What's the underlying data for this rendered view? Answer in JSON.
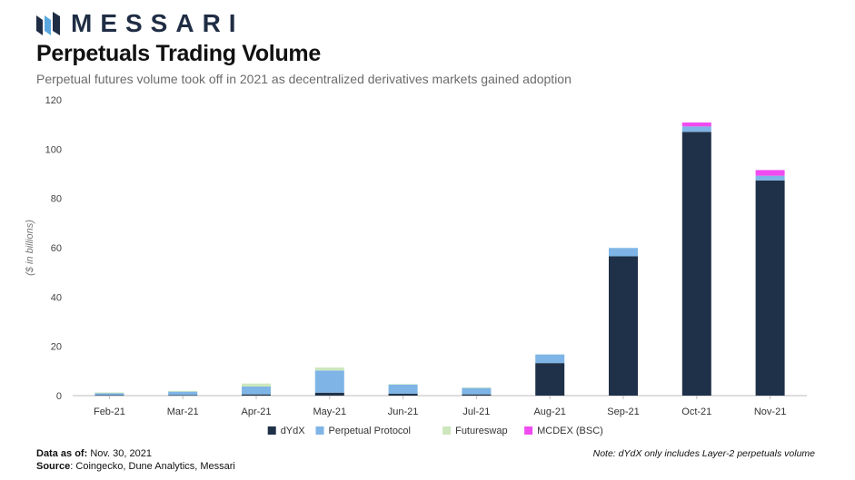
{
  "brand": {
    "name": "MESSARI",
    "color": "#1f2d44"
  },
  "header": {
    "title": "Perpetuals Trading Volume",
    "subtitle": "Perpetual futures volume took off in 2021 as decentralized derivatives markets gained adoption"
  },
  "footer": {
    "data_as_of_label": "Data as of:",
    "data_as_of_value": "Nov. 30, 2021",
    "source_label": "Source",
    "source_value": ": Coingecko, Dune Analytics, Messari",
    "note": "Note: dYdX only includes Layer-2 perpetuals volume"
  },
  "chart_data": {
    "type": "bar",
    "stacked": true,
    "title": "Perpetuals Trading Volume",
    "xlabel": "",
    "ylabel": "($ in billions)",
    "ylim": [
      0,
      120
    ],
    "yticks": [
      0,
      20,
      40,
      60,
      80,
      100,
      120
    ],
    "grid": false,
    "legend_position": "bottom",
    "categories": [
      "Feb-21",
      "Mar-21",
      "Apr-21",
      "May-21",
      "Jun-21",
      "Jul-21",
      "Aug-21",
      "Sep-21",
      "Oct-21",
      "Nov-21"
    ],
    "series": [
      {
        "name": "dYdX",
        "color": "#1f3148",
        "values": [
          0.2,
          0.2,
          0.5,
          1.2,
          0.8,
          0.5,
          13.2,
          56.5,
          107.0,
          87.3
        ]
      },
      {
        "name": "Perpetual Protocol",
        "color": "#7eb5e6",
        "values": [
          0.8,
          1.4,
          3.2,
          9.0,
          3.7,
          2.6,
          3.5,
          3.4,
          2.2,
          1.9
        ]
      },
      {
        "name": "Futureswap",
        "color": "#cde6bd",
        "values": [
          0.3,
          0.3,
          1.2,
          1.2,
          0.2,
          0.2,
          0.0,
          0.0,
          0.0,
          0.0
        ]
      },
      {
        "name": "MCDEX (BSC)",
        "color": "#f04bf0",
        "values": [
          0.0,
          0.0,
          0.0,
          0.0,
          0.0,
          0.0,
          0.0,
          0.0,
          1.6,
          2.3
        ]
      }
    ]
  }
}
